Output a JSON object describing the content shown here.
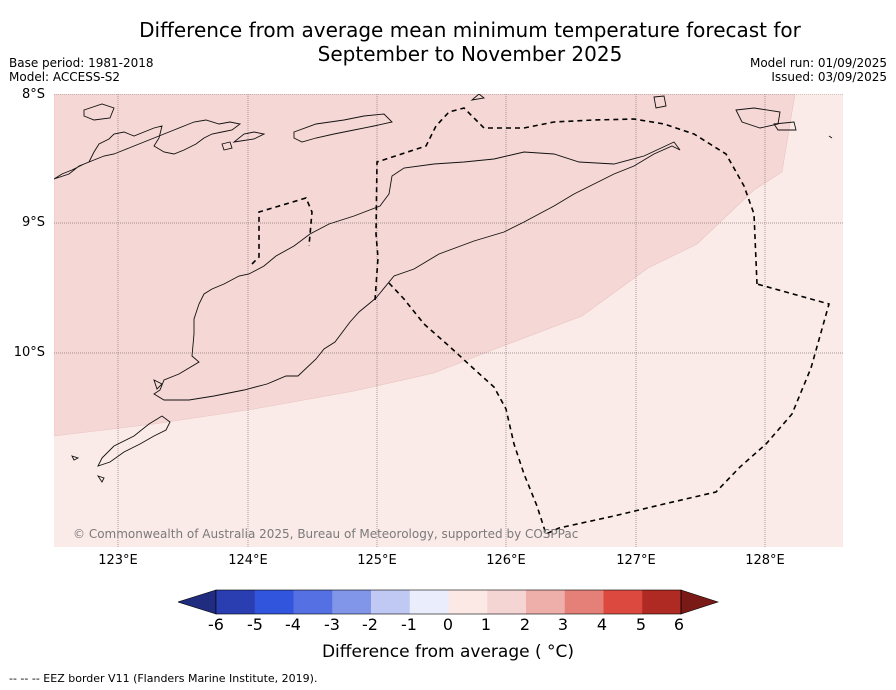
{
  "title_line1": "Difference from average mean minimum temperature forecast for",
  "title_line2": "September to November 2025",
  "meta_left": {
    "base_period": "Base period: 1981-2018",
    "model": "Model: ACCESS-S2"
  },
  "meta_right": {
    "model_run": "Model run: 01/09/2025",
    "issued": "Issued: 03/09/2025"
  },
  "lat_labels": [
    "8°S",
    "9°S",
    "10°S"
  ],
  "lon_labels": [
    "123°E",
    "124°E",
    "125°E",
    "126°E",
    "127°E",
    "128°E"
  ],
  "copyright": "© Commonwealth of Australia 2025, Bureau of Meteorology, supported by COSPPac",
  "colorbar": {
    "ticks": [
      "-6",
      "-5",
      "-4",
      "-3",
      "-2",
      "-1",
      "0",
      "1",
      "2",
      "3",
      "4",
      "5",
      "6"
    ],
    "label": "Difference from average ( °C)",
    "colors": [
      "#1f2c80",
      "#2a3eb1",
      "#3255de",
      "#5570e2",
      "#8196e9",
      "#c0c9f3",
      "#eaedfb",
      "#fce9e6",
      "#f5d5d3",
      "#eeaeaa",
      "#e58079",
      "#dc4a3f",
      "#ae2a22",
      "#7a1a16"
    ]
  },
  "fill_colors": {
    "one_to_two": "#f5d7d5",
    "zero_to_one": "#fbebe8"
  },
  "eez_note": "--  --  -- EEZ border V11 (Flanders Marine Institute, 2019)."
}
